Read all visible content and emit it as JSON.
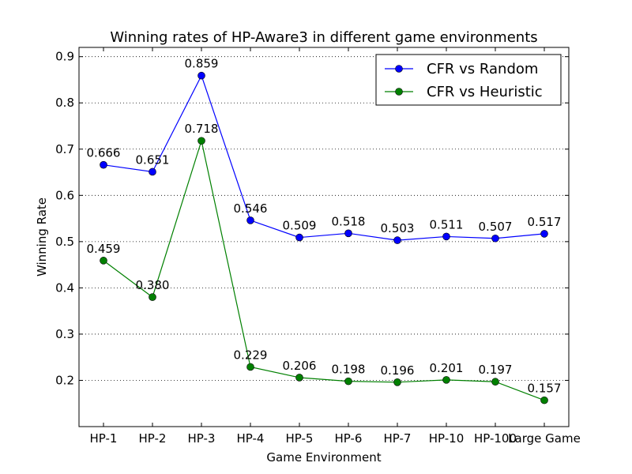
{
  "chart_data": {
    "type": "line",
    "title": "Winning rates of HP-Aware3 in different game environments",
    "xlabel": "Game Environment",
    "ylabel": "Winning Rate",
    "categories": [
      "HP-1",
      "HP-2",
      "HP-3",
      "HP-4",
      "HP-5",
      "HP-6",
      "HP-7",
      "HP-10",
      "HP-100",
      "Large Game"
    ],
    "ylim": [
      0.1,
      0.92
    ],
    "yticks": [
      0.2,
      0.3,
      0.4,
      0.5,
      0.6,
      0.7,
      0.8,
      0.9
    ],
    "grid": "horizontal, dotted",
    "legend_position": "top-right",
    "series": [
      {
        "name": "CFR vs Random",
        "color": "#0000ff",
        "values": [
          0.666,
          0.651,
          0.859,
          0.546,
          0.509,
          0.518,
          0.503,
          0.511,
          0.507,
          0.517
        ],
        "labels": [
          "0.666",
          "0.651",
          "0.859",
          "0.546",
          "0.509",
          "0.518",
          "0.503",
          "0.511",
          "0.507",
          "0.517"
        ]
      },
      {
        "name": "CFR vs Heuristic",
        "color": "#008000",
        "values": [
          0.459,
          0.38,
          0.718,
          0.229,
          0.206,
          0.198,
          0.196,
          0.201,
          0.197,
          0.157
        ],
        "labels": [
          "0.459",
          "0.380",
          "0.718",
          "0.229",
          "0.206",
          "0.198",
          "0.196",
          "0.201",
          "0.197",
          "0.157"
        ]
      }
    ]
  }
}
